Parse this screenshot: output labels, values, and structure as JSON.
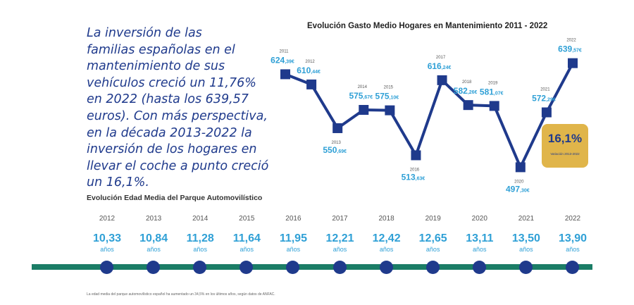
{
  "intro_lines": [
    "La inversión de las",
    "familias españolas en el",
    "mantenimiento de sus",
    "vehículos creció un 11,76%",
    "en 2022 (hasta los 639,57",
    "euros). Con más perspectiva,",
    "en la década 2013-2022 la",
    "inversión de los hogares en",
    "llevar el coche a punto creció",
    "un 16,1%."
  ],
  "chart_data": [
    {
      "type": "line",
      "title": "Evolución Gasto Medio Hogares en Mantenimiento 2011 - 2022",
      "x": [
        "2011",
        "2012",
        "2013",
        "2014",
        "2015",
        "2016",
        "2017",
        "2018",
        "2019",
        "2020",
        "2021",
        "2022"
      ],
      "values": [
        624.39,
        610.44,
        550.69,
        575.67,
        575.1,
        513.63,
        616.24,
        582.26,
        581.07,
        497.3,
        572.29,
        639.57
      ],
      "value_labels": [
        "624,39",
        "610,44",
        "550,69",
        "575,67",
        "575,10",
        "513,63",
        "616,24",
        "582,26",
        "581,07",
        "497,30",
        "572,29",
        "639,57"
      ],
      "currency": "€",
      "ylim": [
        490,
        645
      ],
      "grid": false
    },
    {
      "type": "table",
      "title": "Evolución Edad Media del Parque Automovilístico",
      "x": [
        "2012",
        "2013",
        "2014",
        "2015",
        "2016",
        "2017",
        "2018",
        "2019",
        "2020",
        "2021",
        "2022"
      ],
      "values": [
        10.33,
        10.84,
        11.28,
        11.64,
        11.95,
        12.21,
        12.42,
        12.65,
        13.11,
        13.5,
        13.9
      ],
      "value_labels": [
        "10,33",
        "10,84",
        "11,28",
        "11,64",
        "11,95",
        "12,21",
        "12,42",
        "12,65",
        "13,11",
        "13,50",
        "13,90"
      ],
      "unit": "años"
    }
  ],
  "badge": {
    "value": "16,1%",
    "note": "Variación 2013-2022"
  },
  "footnote": "La edad media del parque automovilístico español ha aumentado un 34,5% en los últimos años, según datos de ANFAC.",
  "colors": {
    "navy": "#1f3a8c",
    "light_blue": "#2fa0d6",
    "green": "#1b7d66",
    "gold": "#e0b54a"
  }
}
